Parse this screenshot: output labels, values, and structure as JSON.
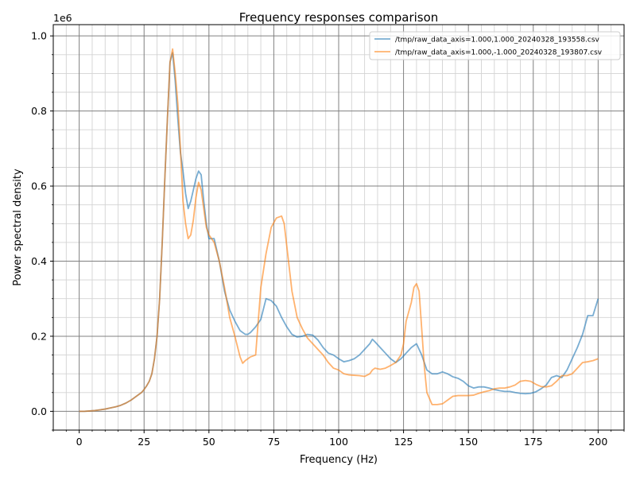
{
  "chart_data": {
    "type": "line",
    "title": "Frequency responses comparison",
    "xlabel": "Frequency (Hz)",
    "ylabel": "Power spectral density",
    "y_offset_text": "1e6",
    "xlim": [
      -10,
      210
    ],
    "ylim": [
      -50000,
      1030000
    ],
    "x_ticks": [
      0,
      25,
      50,
      75,
      100,
      125,
      150,
      175,
      200
    ],
    "y_ticks": [
      0,
      200000,
      400000,
      600000,
      800000,
      1000000
    ],
    "y_tick_labels": [
      "0.0",
      "0.2",
      "0.4",
      "0.6",
      "0.8",
      "1.0"
    ],
    "grid": {
      "major": true,
      "minor": true,
      "x_minor_step": 5,
      "y_minor_step": 50000
    },
    "legend_position": "top-right",
    "colors": {
      "major_grid": "#808080",
      "minor_grid": "#d3d3d3"
    },
    "series": [
      {
        "name": "/tmp/raw_data_axis=1.000,1.000_20240328_193558.csv",
        "color": "#1f77b4",
        "x": [
          0,
          2,
          4,
          6,
          8,
          10,
          12,
          14,
          16,
          18,
          20,
          22,
          24,
          25,
          26,
          27,
          28,
          29,
          30,
          31,
          32,
          33,
          34,
          35,
          36,
          37,
          38,
          39,
          40,
          41,
          42,
          43,
          44,
          45,
          46,
          47,
          48,
          49,
          50,
          52,
          54,
          56,
          58,
          60,
          62,
          64,
          65,
          66,
          68,
          70,
          72,
          74,
          76,
          78,
          80,
          82,
          84,
          86,
          88,
          90,
          92,
          94,
          96,
          98,
          100,
          102,
          104,
          106,
          108,
          110,
          112,
          113,
          114,
          116,
          118,
          120,
          122,
          124,
          126,
          128,
          130,
          132,
          134,
          136,
          138,
          140,
          142,
          144,
          146,
          148,
          150,
          152,
          154,
          156,
          158,
          160,
          162,
          164,
          166,
          168,
          170,
          172,
          174,
          176,
          178,
          180,
          182,
          184,
          186,
          188,
          190,
          192,
          194,
          196,
          198,
          200
        ],
        "values": [
          0,
          0,
          1000,
          2000,
          4000,
          6000,
          9000,
          12000,
          16000,
          22000,
          30000,
          40000,
          50000,
          58000,
          68000,
          80000,
          100000,
          140000,
          200000,
          300000,
          450000,
          620000,
          780000,
          930000,
          955000,
          880000,
          780000,
          690000,
          640000,
          580000,
          540000,
          560000,
          590000,
          620000,
          640000,
          630000,
          560000,
          500000,
          460000,
          460000,
          400000,
          320000,
          270000,
          240000,
          215000,
          205000,
          205000,
          210000,
          225000,
          245000,
          300000,
          295000,
          280000,
          250000,
          225000,
          205000,
          198000,
          200000,
          205000,
          203000,
          190000,
          170000,
          155000,
          150000,
          140000,
          132000,
          135000,
          140000,
          150000,
          165000,
          180000,
          192000,
          185000,
          170000,
          155000,
          140000,
          130000,
          140000,
          155000,
          170000,
          180000,
          150000,
          110000,
          100000,
          100000,
          105000,
          100000,
          92000,
          88000,
          80000,
          68000,
          62000,
          65000,
          65000,
          62000,
          58000,
          55000,
          53000,
          53000,
          50000,
          48000,
          47000,
          48000,
          52000,
          60000,
          70000,
          90000,
          95000,
          90000,
          110000,
          140000,
          170000,
          205000,
          255000,
          255000,
          300000
        ]
      },
      {
        "name": "/tmp/raw_data_axis=1.000,-1.000_20240328_193807.csv",
        "color": "#ff7f0e",
        "x": [
          0,
          2,
          4,
          6,
          8,
          10,
          12,
          14,
          16,
          18,
          20,
          22,
          24,
          25,
          26,
          27,
          28,
          29,
          30,
          31,
          32,
          33,
          34,
          35,
          36,
          37,
          38,
          39,
          40,
          41,
          42,
          43,
          44,
          45,
          46,
          47,
          48,
          49,
          50,
          52,
          54,
          56,
          58,
          60,
          62,
          63,
          64,
          65,
          66,
          68,
          70,
          72,
          74,
          76,
          78,
          79,
          80,
          82,
          84,
          86,
          88,
          90,
          92,
          94,
          96,
          98,
          100,
          102,
          104,
          106,
          108,
          110,
          112,
          113,
          114,
          116,
          118,
          120,
          122,
          124,
          125,
          126,
          128,
          129,
          130,
          131,
          132,
          133,
          134,
          136,
          138,
          140,
          142,
          144,
          146,
          148,
          150,
          152,
          154,
          156,
          158,
          160,
          162,
          164,
          166,
          168,
          170,
          172,
          174,
          176,
          178,
          180,
          182,
          184,
          186,
          188,
          190,
          192,
          194,
          196,
          198,
          200
        ],
        "values": [
          0,
          0,
          1000,
          2000,
          4000,
          6000,
          9000,
          12000,
          16000,
          22000,
          30000,
          40000,
          50000,
          58000,
          68000,
          80000,
          100000,
          140000,
          200000,
          300000,
          450000,
          620000,
          780000,
          930000,
          965000,
          900000,
          820000,
          700000,
          560000,
          500000,
          460000,
          470000,
          510000,
          570000,
          610000,
          590000,
          540000,
          490000,
          470000,
          450000,
          400000,
          330000,
          250000,
          200000,
          145000,
          128000,
          135000,
          140000,
          145000,
          150000,
          330000,
          420000,
          490000,
          515000,
          520000,
          500000,
          440000,
          320000,
          250000,
          220000,
          195000,
          180000,
          165000,
          150000,
          130000,
          115000,
          110000,
          100000,
          97000,
          96000,
          95000,
          93000,
          100000,
          110000,
          115000,
          112000,
          115000,
          122000,
          130000,
          150000,
          180000,
          240000,
          290000,
          330000,
          340000,
          320000,
          220000,
          120000,
          50000,
          18000,
          18000,
          20000,
          30000,
          40000,
          42000,
          42000,
          42000,
          43000,
          48000,
          52000,
          55000,
          60000,
          62000,
          62000,
          65000,
          70000,
          80000,
          82000,
          80000,
          72000,
          66000,
          65000,
          68000,
          80000,
          95000,
          95000,
          100000,
          115000,
          130000,
          132000,
          135000,
          140000
        ]
      }
    ]
  }
}
